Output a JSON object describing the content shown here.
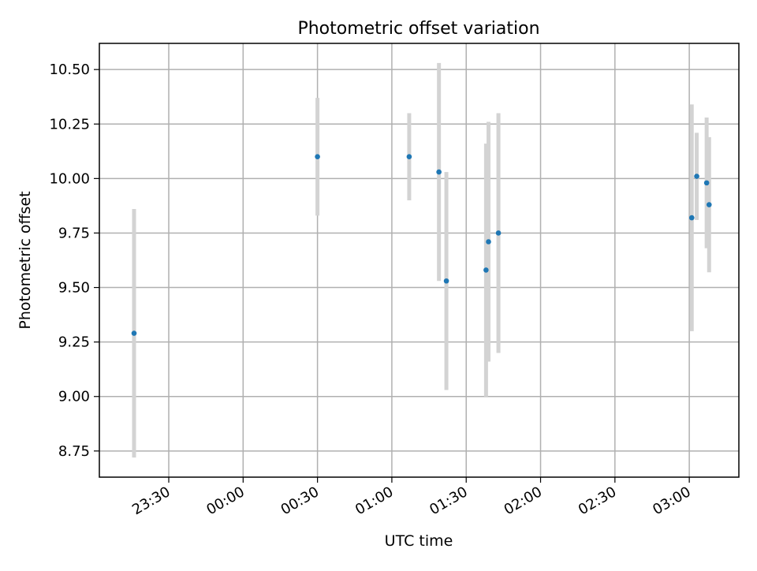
{
  "chart_data": {
    "type": "scatter",
    "title": "Photometric offset variation",
    "xlabel": "UTC time",
    "ylabel": "Photometric offset",
    "x_tick_labels": [
      "23:30",
      "00:00",
      "00:30",
      "01:00",
      "01:30",
      "02:00",
      "02:30",
      "03:00"
    ],
    "x_ticks": [
      "23:30",
      "24:00",
      "24:30",
      "25:00",
      "25:30",
      "26:00",
      "26:30",
      "27:00"
    ],
    "xlim": [
      "23:02",
      "27:20"
    ],
    "y_ticks": [
      8.75,
      9.0,
      9.25,
      9.5,
      9.75,
      10.0,
      10.25,
      10.5
    ],
    "y_tick_labels": [
      "8.75",
      "9.00",
      "9.25",
      "9.50",
      "9.75",
      "10.00",
      "10.25",
      "10.50"
    ],
    "ylim": [
      8.63,
      10.62
    ],
    "grid": true,
    "colors": {
      "points": "#1f77b4",
      "error_bars": "#d3d3d3",
      "grid": "#b0b0b0"
    },
    "points": [
      {
        "x": "23:16",
        "y": 9.29,
        "yerr": 0.57
      },
      {
        "x": "24:30",
        "y": 10.1,
        "yerr": 0.27
      },
      {
        "x": "25:07",
        "y": 10.1,
        "yerr": 0.2
      },
      {
        "x": "25:19",
        "y": 10.03,
        "yerr": 0.5
      },
      {
        "x": "25:22",
        "y": 9.53,
        "yerr": 0.5
      },
      {
        "x": "25:38",
        "y": 9.58,
        "yerr": 0.58
      },
      {
        "x": "25:39",
        "y": 9.71,
        "yerr": 0.55
      },
      {
        "x": "25:43",
        "y": 9.75,
        "yerr": 0.55
      },
      {
        "x": "27:01",
        "y": 9.82,
        "yerr": 0.52
      },
      {
        "x": "27:03",
        "y": 10.01,
        "yerr": 0.2
      },
      {
        "x": "27:07",
        "y": 9.98,
        "yerr": 0.3
      },
      {
        "x": "27:08",
        "y": 9.88,
        "yerr": 0.31
      }
    ]
  }
}
